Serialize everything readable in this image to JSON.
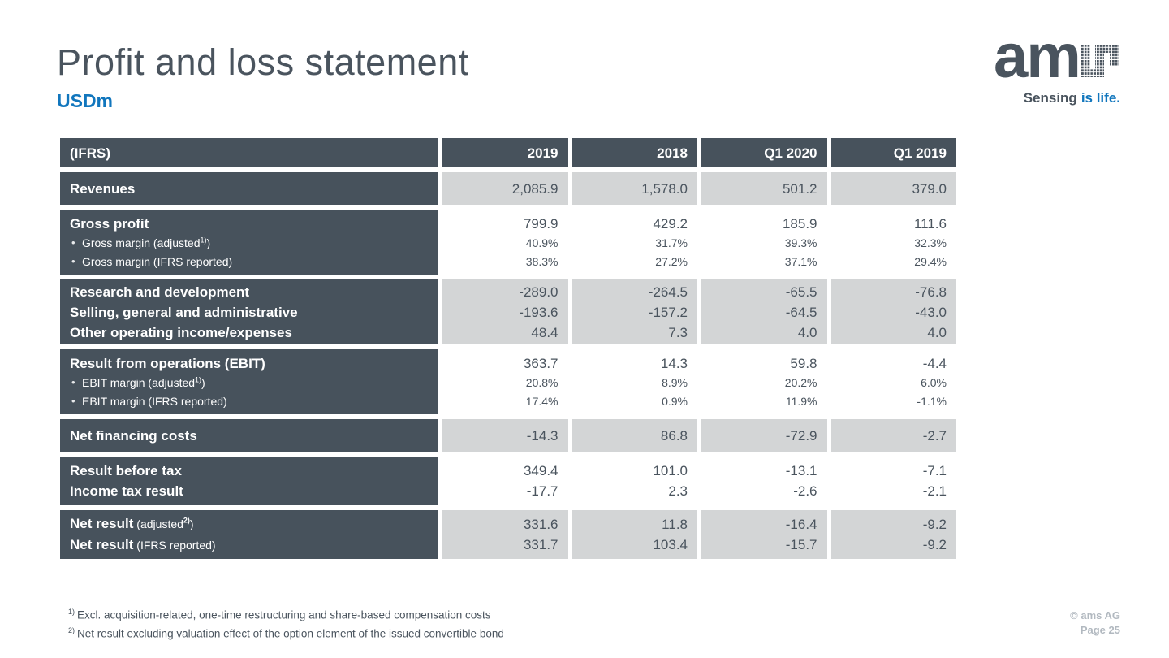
{
  "slide": {
    "title": "Profit and loss statement",
    "subtitle": "USDm"
  },
  "logo": {
    "am": "am",
    "tagline_dark": "Sensing",
    "tagline_blue": "is life."
  },
  "table": {
    "header_label": "(IFRS)",
    "columns": [
      "2019",
      "2018",
      "Q1 2020",
      "Q1 2019"
    ],
    "blocks": [
      {
        "zebra": "gray",
        "rows": [
          {
            "bold": "Revenues",
            "size": "main",
            "values": [
              "2,085.9",
              "1,578.0",
              "501.2",
              "379.0"
            ]
          }
        ]
      },
      {
        "zebra": "white",
        "rows": [
          {
            "bold": "Gross profit",
            "size": "main",
            "values": [
              "799.9",
              "429.2",
              "185.9",
              "111.6"
            ]
          },
          {
            "bullet": true,
            "pre": "Gross margin (adjusted",
            "sup": "1)",
            "post": ")",
            "size": "sub",
            "values": [
              "40.9%",
              "31.7%",
              "39.3%",
              "32.3%"
            ]
          },
          {
            "bullet": true,
            "pre": "Gross margin (IFRS reported)",
            "size": "sub",
            "values": [
              "38.3%",
              "27.2%",
              "37.1%",
              "29.4%"
            ]
          }
        ]
      },
      {
        "zebra": "gray",
        "rows": [
          {
            "bold": "Research and development",
            "size": "main",
            "values": [
              "-289.0",
              "-264.5",
              "-65.5",
              "-76.8"
            ]
          },
          {
            "bold": "Selling, general and administrative",
            "size": "main",
            "values": [
              "-193.6",
              "-157.2",
              "-64.5",
              "-43.0"
            ]
          },
          {
            "bold": "Other operating income/expenses",
            "size": "main",
            "values": [
              "48.4",
              "7.3",
              "4.0",
              "4.0"
            ]
          }
        ]
      },
      {
        "zebra": "white",
        "rows": [
          {
            "bold": "Result from operations (EBIT)",
            "size": "main",
            "values": [
              "363.7",
              "14.3",
              "59.8",
              "-4.4"
            ]
          },
          {
            "bullet": true,
            "pre": "EBIT margin (adjusted",
            "sup": "1)",
            "post": ")",
            "size": "sub",
            "values": [
              "20.8%",
              "8.9%",
              "20.2%",
              "6.0%"
            ]
          },
          {
            "bullet": true,
            "pre": "EBIT margin (IFRS reported)",
            "size": "sub",
            "values": [
              "17.4%",
              "0.9%",
              "11.9%",
              "-1.1%"
            ]
          }
        ]
      },
      {
        "zebra": "gray",
        "rows": [
          {
            "bold": "Net financing costs",
            "size": "main",
            "values": [
              "-14.3",
              "86.8",
              "-72.9",
              "-2.7"
            ]
          }
        ]
      },
      {
        "zebra": "white",
        "rows": [
          {
            "bold": "Result before tax",
            "size": "main",
            "values": [
              "349.4",
              "101.0",
              "-13.1",
              "-7.1"
            ]
          },
          {
            "bold": "Income tax result",
            "size": "main",
            "values": [
              "-17.7",
              "2.3",
              "-2.6",
              "-2.1"
            ]
          }
        ]
      },
      {
        "zebra": "gray",
        "rows": [
          {
            "bold": "Net result",
            "pre": " (adjusted",
            "sup": "2)",
            "post": ")",
            "size": "main",
            "values": [
              "331.6",
              "11.8",
              "-16.4",
              "-9.2"
            ]
          },
          {
            "bold": "Net result",
            "pre": " (IFRS reported)",
            "size": "main",
            "values": [
              "331.7",
              "103.4",
              "-15.7",
              "-9.2"
            ]
          }
        ]
      }
    ]
  },
  "footnotes": [
    {
      "marker": "1)",
      "text": "Excl. acquisition-related, one-time restructuring and share-based compensation costs"
    },
    {
      "marker": "2)",
      "text": "Net result excluding valuation effect of the option element of the issued convertible bond"
    }
  ],
  "footer": {
    "copyright": "© ams AG",
    "page": "Page 25"
  },
  "colors": {
    "accent_blue": "#1176BD",
    "table_header_bg": "#47525C",
    "cell_gray": "#D3D5D6",
    "text": "#4A545E",
    "footer_text": "#B2B9C0"
  }
}
